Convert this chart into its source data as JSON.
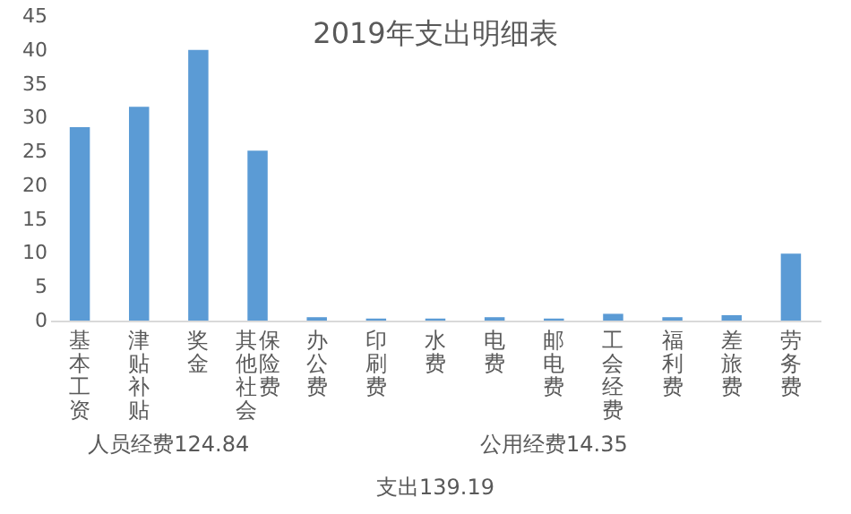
{
  "chart_data": {
    "type": "bar",
    "title": "2019年支出明细表",
    "categories": [
      "基本工资",
      "津贴补贴",
      "奖金",
      "其他社会保险费",
      "办公费",
      "印刷费",
      "水费",
      "电费",
      "邮电费",
      "工会经费",
      "福利费",
      "差旅费",
      "劳务费"
    ],
    "values": [
      28.6,
      31.6,
      40,
      25.1,
      0.5,
      0.3,
      0.3,
      0.5,
      0.3,
      1.0,
      0.5,
      0.8,
      9.9
    ],
    "color": "#5b9bd5",
    "ylim": [
      0,
      45
    ],
    "yticks": [
      0,
      5,
      10,
      15,
      20,
      25,
      30,
      35,
      40,
      45
    ],
    "grid": false,
    "annotations": [
      "人员经费124.84",
      "公用经费14.35",
      "支出139.19"
    ]
  }
}
